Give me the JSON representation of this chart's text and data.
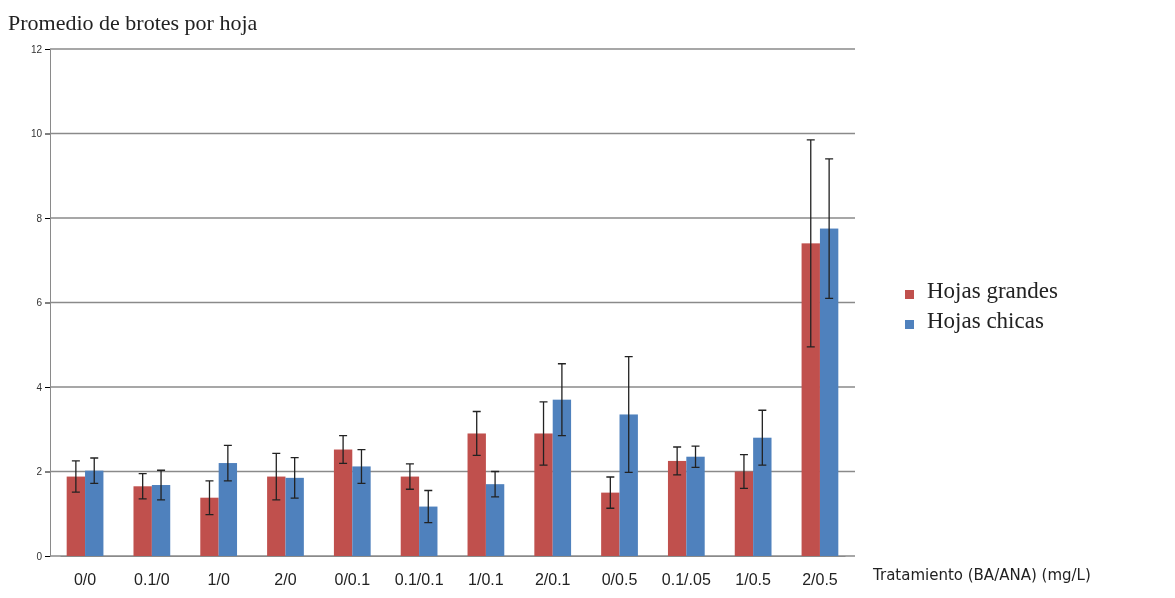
{
  "chart_data": {
    "type": "bar",
    "title": "Promedio de brotes por hoja",
    "xlabel": "Tratamiento (BA/ANA) (mg/L)",
    "categories": [
      "0/0",
      "0.1/0",
      "1/0",
      "2/0",
      "0/0.1",
      "0.1/0.1",
      "1/0.1",
      "2/0.1",
      "0/0.5",
      "0.1/.05",
      "1/0.5",
      "2/0.5"
    ],
    "series": [
      {
        "name": "Hojas grandes",
        "color": "#c0504d",
        "values": [
          1.88,
          1.65,
          1.38,
          1.88,
          2.52,
          1.88,
          2.9,
          2.9,
          1.5,
          2.25,
          2.0,
          7.4
        ],
        "errors": [
          0.37,
          0.3,
          0.4,
          0.55,
          0.33,
          0.3,
          0.52,
          0.75,
          0.37,
          0.33,
          0.4,
          2.45
        ]
      },
      {
        "name": "Hojas chicas",
        "color": "#4f81bd",
        "values": [
          2.02,
          1.68,
          2.2,
          1.85,
          2.12,
          1.17,
          1.7,
          3.7,
          3.35,
          2.35,
          2.8,
          7.75
        ],
        "errors": [
          0.3,
          0.35,
          0.42,
          0.48,
          0.4,
          0.38,
          0.3,
          0.85,
          1.37,
          0.25,
          0.65,
          1.65
        ]
      }
    ],
    "ylim": [
      0,
      12
    ],
    "yticks": [
      0,
      2,
      4,
      6,
      8,
      10,
      12
    ],
    "grid": "y",
    "legend": "right"
  }
}
